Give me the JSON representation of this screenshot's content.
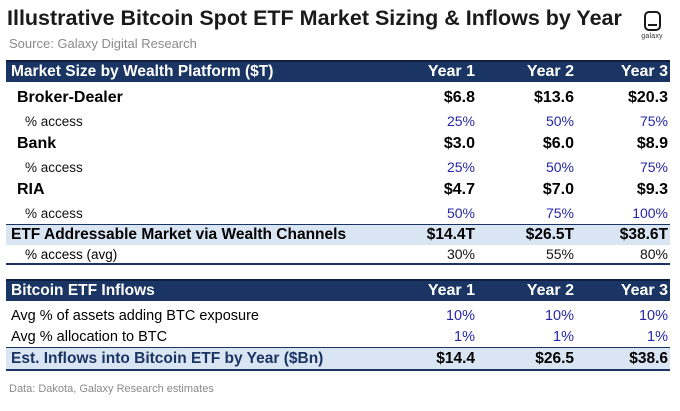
{
  "title": "Illustrative Bitcoin Spot ETF Market Sizing & Inflows by Year",
  "source": "Source: Galaxy Digital Research",
  "logo": {
    "icon": "galaxy-logo-icon",
    "text": "galaxy"
  },
  "market_table": {
    "header": {
      "label": "Market Size by Wealth Platform ($T)",
      "years": [
        "Year 1",
        "Year 2",
        "Year 3"
      ]
    },
    "groups": [
      {
        "name": "Broker-Dealer",
        "values": [
          "$6.8",
          "$13.6",
          "$20.3"
        ],
        "access_label": "% access",
        "access": [
          "25%",
          "50%",
          "75%"
        ]
      },
      {
        "name": "Bank",
        "values": [
          "$3.0",
          "$6.0",
          "$8.9"
        ],
        "access_label": "% access",
        "access": [
          "25%",
          "50%",
          "75%"
        ]
      },
      {
        "name": "RIA",
        "values": [
          "$4.7",
          "$7.0",
          "$9.3"
        ],
        "access_label": "% access",
        "access": [
          "50%",
          "75%",
          "100%"
        ]
      }
    ],
    "addressable": {
      "label": "ETF Addressable Market via Wealth Channels",
      "values": [
        "$14.4T",
        "$26.5T",
        "$38.6T"
      ]
    },
    "avg_access": {
      "label": "% access (avg)",
      "values": [
        "30%",
        "55%",
        "80%"
      ]
    }
  },
  "inflows_table": {
    "header": {
      "label": "Bitcoin ETF Inflows",
      "years": [
        "Year 1",
        "Year 2",
        "Year 3"
      ]
    },
    "rows": [
      {
        "label": "Avg % of assets adding BTC exposure",
        "values": [
          "10%",
          "10%",
          "10%"
        ]
      },
      {
        "label": "Avg % allocation to BTC",
        "values": [
          "1%",
          "1%",
          "1%"
        ]
      }
    ],
    "total": {
      "label": "Est. Inflows into Bitcoin ETF by Year ($Bn)",
      "values": [
        "$14.4",
        "$26.5",
        "$38.6"
      ]
    }
  },
  "footer": "Data: Dakota, Galaxy Research estimates"
}
